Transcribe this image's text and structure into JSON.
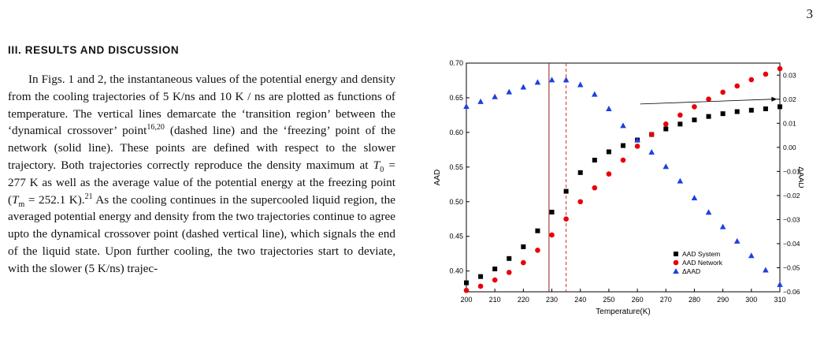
{
  "page_number": "3",
  "section": {
    "heading": "III.   RESULTS AND DISCUSSION"
  },
  "paragraph": {
    "t1": "In Figs. 1 and 2, the instantaneous values of the potential energy and density from the cooling trajectories of 5 K/ns and 10 K / ns are plotted as functions of temperature. The vertical lines demarcate the ‘transition region’ between the ‘dynamical crossover’ point",
    "ref1": "16,20",
    "t2": " (dashed line) and the ‘freezing’ point of the network (solid line). These points are defined with respect to the slower trajectory. Both trajectories correctly reproduce the density maximum at ",
    "t0_symbol": "T",
    "t0_sub": "0",
    "t3": " = 277 K as well as the average value of the potential energy at the freezing point (",
    "tm_symbol": "T",
    "tm_sub": "m",
    "t4": " = 252.1 K).",
    "ref2": "21",
    "t5": " As the cooling continues in the supercooled liquid region, the averaged potential energy and density from the two trajectories continue to agree upto the dynamical crossover point (dashed vertical line), which signals the end of the liquid state. Upon further cooling, the two trajectories start to deviate, with the slower (5 K/ns) trajec-"
  },
  "chart_data": {
    "type": "scatter",
    "xlabel": "Temperature(K)",
    "ylabel": "AAD",
    "y2label": "ΔAAD",
    "xlim": [
      200,
      310
    ],
    "ylim": [
      0.37,
      0.7
    ],
    "y2lim": [
      -0.06,
      0.035
    ],
    "xticks": [
      "200",
      "210",
      "220",
      "230",
      "240",
      "250",
      "260",
      "270",
      "280",
      "290",
      "300",
      "310"
    ],
    "yticks": [
      "0.40",
      "0.45",
      "0.50",
      "0.55",
      "0.60",
      "0.65",
      "0.70"
    ],
    "y2ticks": [
      "−0.06",
      "−0.05",
      "−0.04",
      "−0.03",
      "−0.02",
      "−0.01",
      "0.00",
      "0.01",
      "0.02",
      "0.03"
    ],
    "vlines": [
      {
        "x": 229,
        "style": "solid",
        "color": "#8b1a1a"
      },
      {
        "x": 235,
        "style": "dashed",
        "color": "#d62728"
      }
    ],
    "legend_position": "bottom-right",
    "series": [
      {
        "name": "AAD System",
        "axis": "left",
        "marker": "square",
        "color": "#000000",
        "x": [
          200,
          205,
          210,
          215,
          220,
          225,
          230,
          235,
          240,
          245,
          250,
          255,
          260,
          265,
          270,
          275,
          280,
          285,
          290,
          295,
          300,
          305,
          310
        ],
        "y": [
          0.383,
          0.392,
          0.403,
          0.418,
          0.435,
          0.458,
          0.485,
          0.515,
          0.542,
          0.56,
          0.572,
          0.581,
          0.589,
          0.597,
          0.605,
          0.612,
          0.618,
          0.623,
          0.627,
          0.63,
          0.632,
          0.634,
          0.637
        ]
      },
      {
        "name": "AAD Network",
        "axis": "left",
        "marker": "circle",
        "color": "#e8000b",
        "x": [
          200,
          205,
          210,
          215,
          220,
          225,
          230,
          235,
          240,
          245,
          250,
          255,
          260,
          265,
          270,
          275,
          280,
          285,
          290,
          295,
          300,
          305,
          310
        ],
        "y": [
          0.372,
          0.378,
          0.387,
          0.398,
          0.412,
          0.43,
          0.452,
          0.475,
          0.5,
          0.52,
          0.54,
          0.56,
          0.58,
          0.597,
          0.612,
          0.625,
          0.637,
          0.648,
          0.658,
          0.667,
          0.676,
          0.684,
          0.692
        ]
      },
      {
        "name": "ΔAAD",
        "axis": "right",
        "marker": "triangle",
        "color": "#1f3fe0",
        "x": [
          200,
          205,
          210,
          215,
          220,
          225,
          230,
          235,
          240,
          245,
          250,
          255,
          260,
          265,
          270,
          275,
          280,
          285,
          290,
          295,
          300,
          305,
          310
        ],
        "y": [
          0.017,
          0.019,
          0.021,
          0.023,
          0.025,
          0.027,
          0.028,
          0.028,
          0.026,
          0.022,
          0.016,
          0.009,
          0.003,
          -0.002,
          -0.008,
          -0.014,
          -0.021,
          -0.027,
          -0.033,
          -0.039,
          -0.045,
          -0.051,
          -0.057
        ]
      }
    ],
    "arrow": {
      "x_from": 261,
      "y_from": 0.018,
      "x_to": 309,
      "y_to": 0.02
    }
  }
}
